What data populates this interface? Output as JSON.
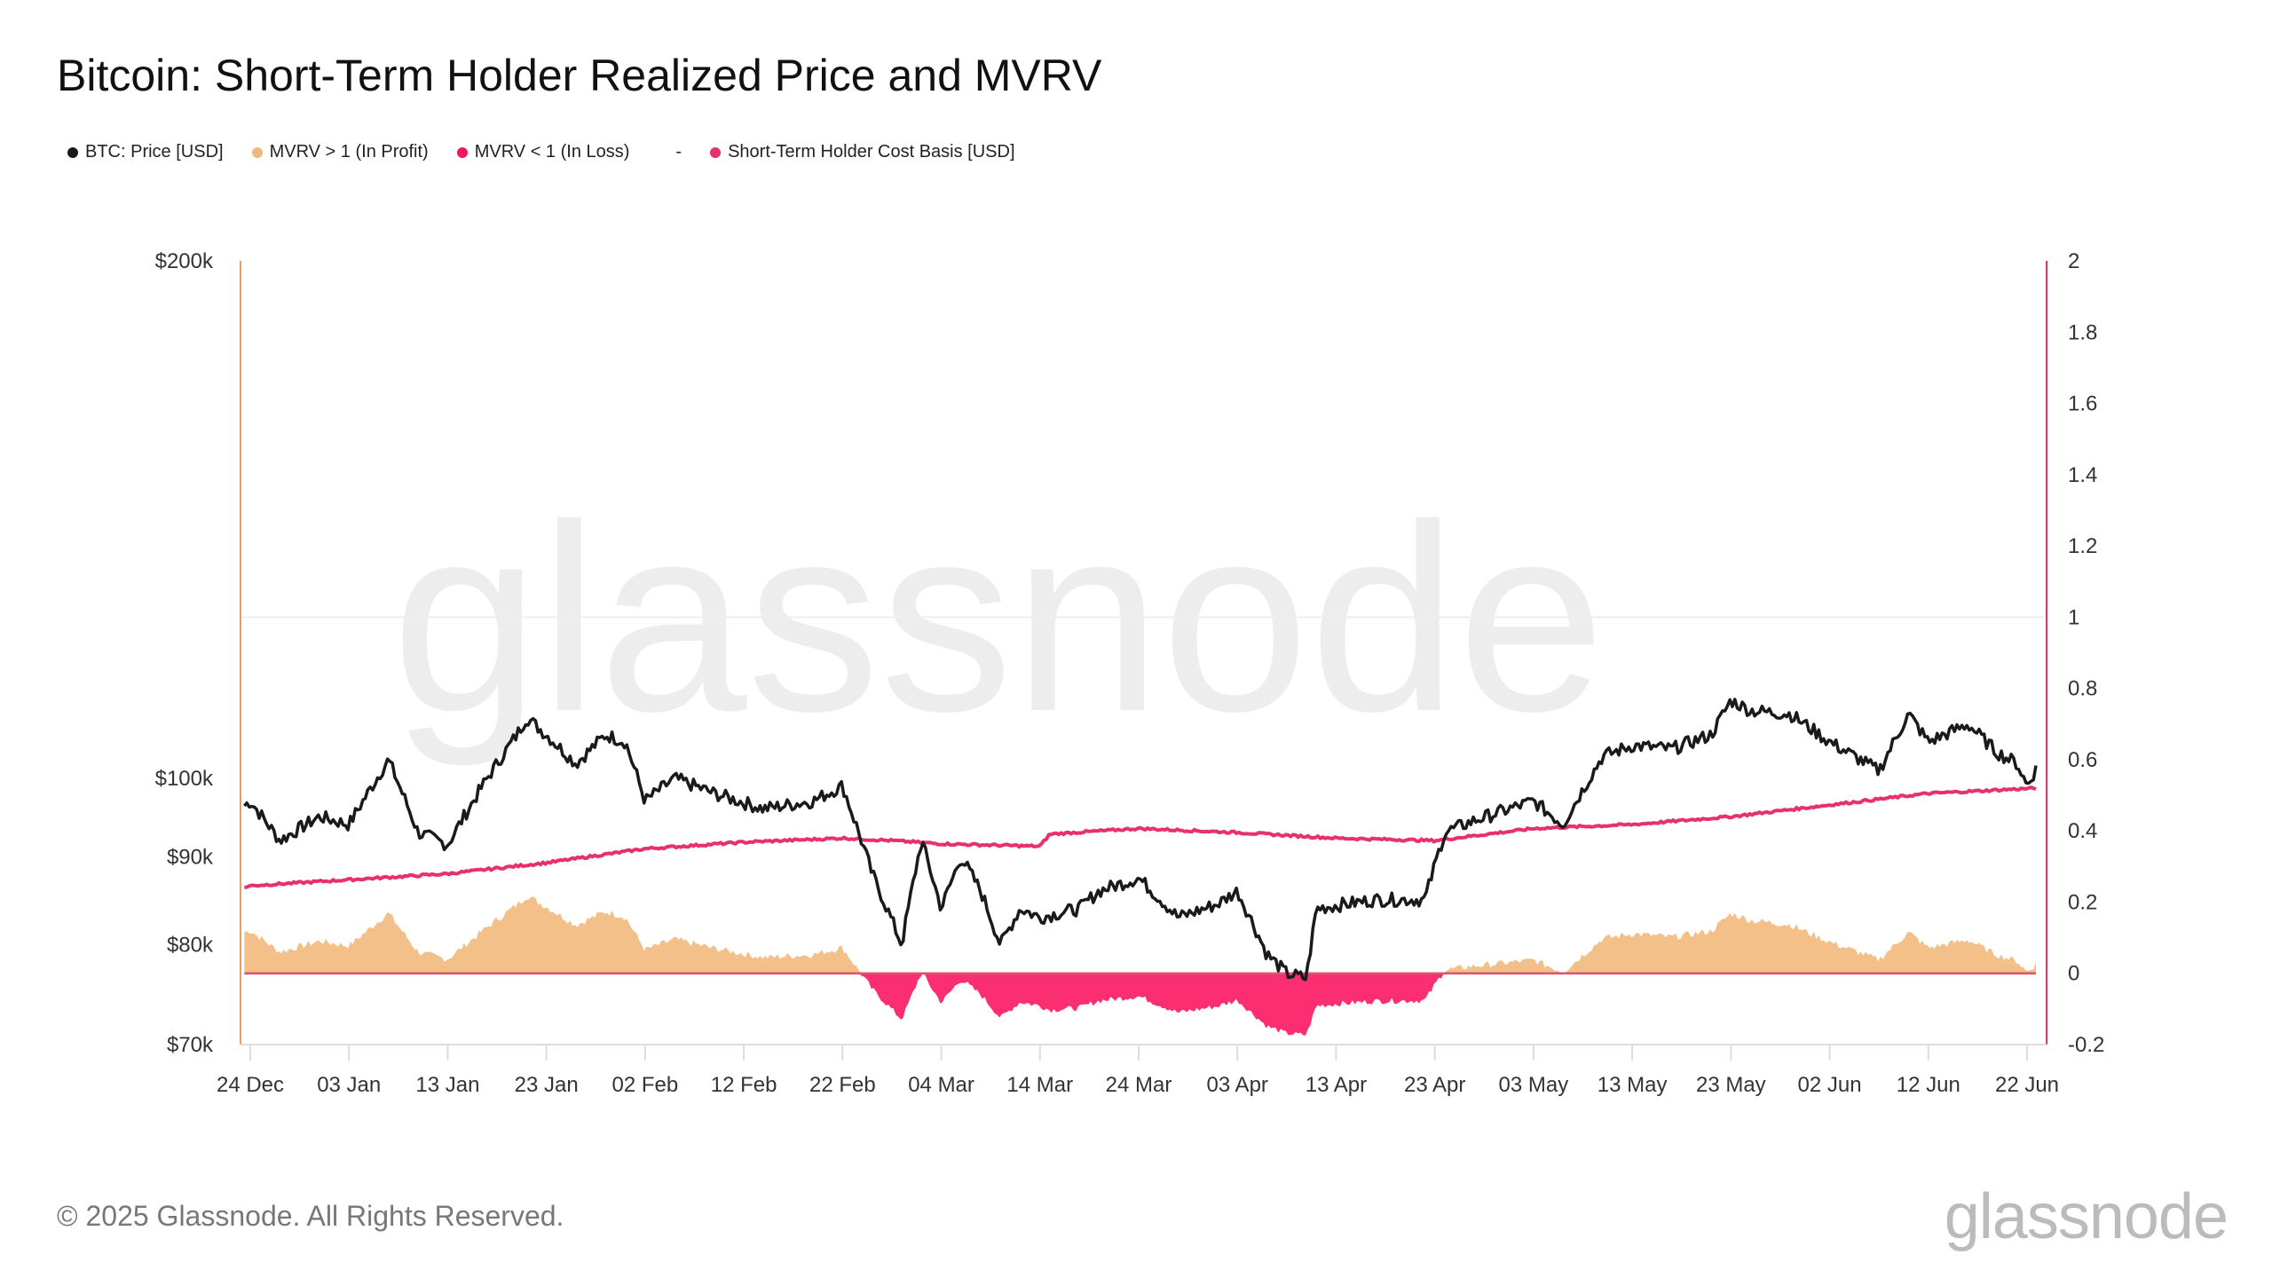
{
  "title": "Bitcoin: Short-Term Holder Realized Price and MVRV",
  "legend": [
    {
      "label": "BTC: Price [USD]",
      "color": "#1a1a1a"
    },
    {
      "label": "MVRV > 1 (In Profit)",
      "color": "#f0b979"
    },
    {
      "label": "MVRV < 1 (In Loss)",
      "color": "#f0175f"
    },
    {
      "label": "-",
      "color": ""
    },
    {
      "label": "Short-Term Holder Cost Basis [USD]",
      "color": "#e8306f"
    }
  ],
  "watermark": "glassnode",
  "footer": "© 2025 Glassnode. All Rights Reserved.",
  "logo": "glassnode",
  "chart_data": {
    "type": "line",
    "title": "Bitcoin: Short-Term Holder Realized Price and MVRV",
    "x_ticks": [
      "24 Dec",
      "03 Jan",
      "13 Jan",
      "23 Jan",
      "02 Feb",
      "12 Feb",
      "22 Feb",
      "04 Mar",
      "14 Mar",
      "24 Mar",
      "03 Apr",
      "13 Apr",
      "23 Apr",
      "03 May",
      "13 May",
      "23 May",
      "02 Jun",
      "12 Jun",
      "22 Jun"
    ],
    "x_tick_days": [
      0,
      10,
      20,
      30,
      40,
      50,
      60,
      70,
      80,
      90,
      100,
      110,
      120,
      130,
      140,
      150,
      160,
      170,
      180
    ],
    "x_start": "2024-12-24",
    "y_left": {
      "scale": "log",
      "range": [
        70000,
        200000
      ],
      "ticks": [
        70000,
        80000,
        90000,
        100000,
        200000
      ],
      "tick_labels": [
        "$70k",
        "$80k",
        "$90k",
        "$100k",
        "$200k"
      ]
    },
    "y_right": {
      "scale": "linear",
      "range": [
        -0.2,
        2
      ],
      "ticks": [
        -0.2,
        0,
        0.2,
        0.4,
        0.6,
        0.8,
        1,
        1.2,
        1.4,
        1.6,
        1.8,
        2
      ],
      "tick_labels": [
        "-0.2",
        "0",
        "0.2",
        "0.4",
        "0.6",
        "0.8",
        "1",
        "1.2",
        "1.4",
        "1.6",
        "1.8",
        "2"
      ]
    },
    "series": [
      {
        "name": "BTC: Price [USD]",
        "axis": "left",
        "day": [
          -1,
          0,
          3,
          7,
          10,
          14,
          17,
          20,
          24,
          27,
          28,
          30,
          33,
          36,
          38,
          40,
          43,
          47,
          52,
          57,
          60,
          63,
          66,
          68,
          70,
          72,
          74,
          76,
          78,
          80,
          84,
          86,
          90,
          94,
          98,
          100,
          103,
          105,
          107,
          108,
          111,
          114,
          119,
          121,
          124,
          130,
          133,
          137,
          140,
          144,
          148,
          150,
          152,
          156,
          160,
          165,
          168,
          170,
          174,
          177,
          179,
          180,
          181
        ],
        "values": [
          96000,
          97000,
          92000,
          95000,
          94000,
          102500,
          93000,
          91500,
          100000,
          106000,
          108500,
          106000,
          102000,
          106000,
          105000,
          97000,
          100000,
          98000,
          96000,
          97000,
          99000,
          88000,
          80000,
          92000,
          84000,
          90000,
          86000,
          80000,
          84000,
          83000,
          84000,
          86000,
          87500,
          83000,
          84500,
          86000,
          79000,
          77000,
          76500,
          84000,
          84500,
          85000,
          85000,
          93000,
          94500,
          97000,
          94000,
          103000,
          104500,
          104000,
          106000,
          111000,
          109500,
          109000,
          105000,
          101000,
          109000,
          105000,
          107500,
          103500,
          102000,
          99000,
          101500
        ]
      },
      {
        "name": "Short-Term Holder Cost Basis [USD]",
        "axis": "left",
        "day": [
          -1,
          0,
          20,
          30,
          40,
          50,
          60,
          65,
          70,
          80,
          81,
          90,
          100,
          110,
          120,
          130,
          140,
          150,
          160,
          170,
          181
        ],
        "values": [
          86300,
          86600,
          88000,
          89300,
          91000,
          91800,
          92300,
          92000,
          91600,
          91300,
          92800,
          93500,
          93000,
          92300,
          92000,
          93500,
          94000,
          95000,
          96500,
          98000,
          98700
        ]
      },
      {
        "name": "MVRV",
        "axis": "right",
        "derived": "price / cost_basis - 1",
        "positive_label": "MVRV > 1 (In Profit)",
        "negative_label": "MVRV < 1 (In Loss)"
      }
    ]
  }
}
